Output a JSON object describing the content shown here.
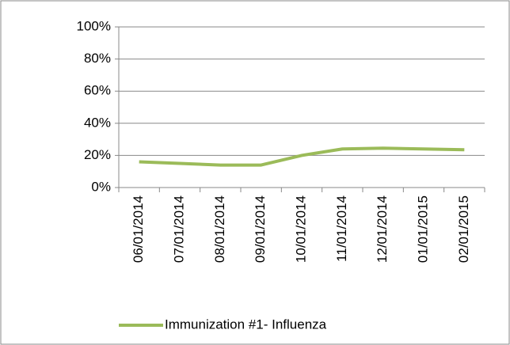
{
  "chart_data": {
    "type": "line",
    "categories": [
      "06/01/2014",
      "07/01/2014",
      "08/01/2014",
      "09/01/2014",
      "10/01/2014",
      "11/01/2014",
      "12/01/2014",
      "01/01/2015",
      "02/01/2015"
    ],
    "series": [
      {
        "name": "Immunization #1- Influenza",
        "color": "#9bbb59",
        "values": [
          16,
          15,
          14,
          14,
          20,
          24,
          24.5,
          24,
          23.5
        ]
      }
    ],
    "ylim": [
      0,
      100
    ],
    "yticks": [
      {
        "value": 0,
        "label": "0%"
      },
      {
        "value": 20,
        "label": "20%"
      },
      {
        "value": 40,
        "label": "40%"
      },
      {
        "value": 60,
        "label": "60%"
      },
      {
        "value": 80,
        "label": "80%"
      },
      {
        "value": 100,
        "label": "100%"
      }
    ],
    "grid": true,
    "legend": "bottom"
  }
}
